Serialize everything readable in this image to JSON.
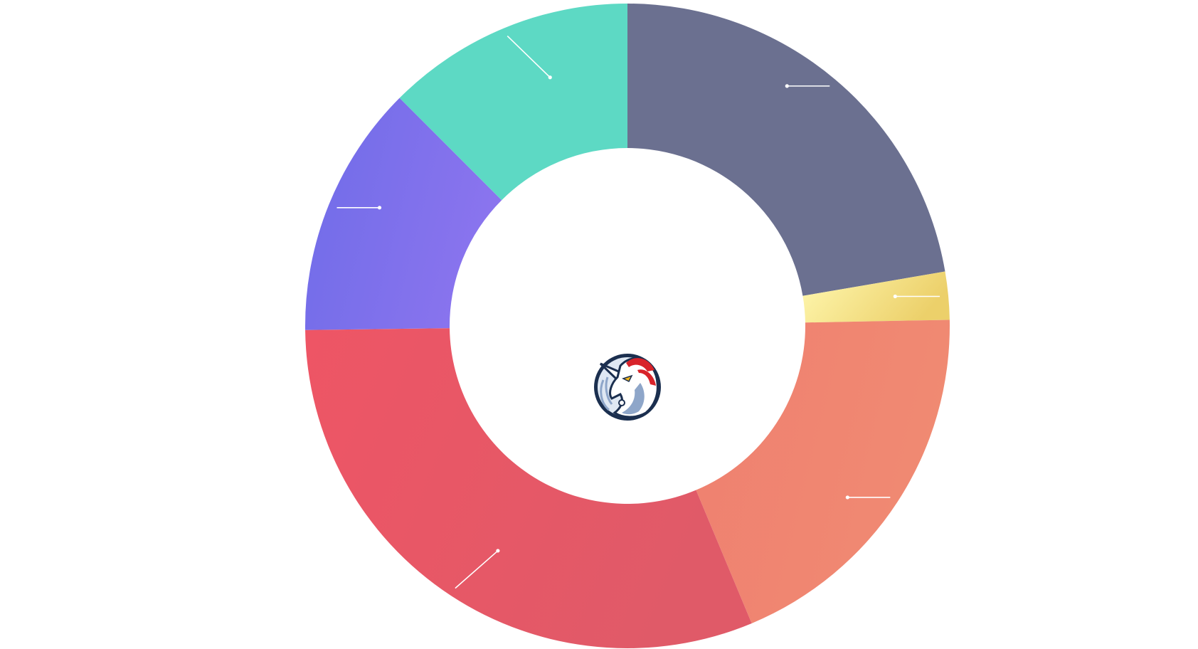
{
  "chart_data": {
    "type": "pie",
    "variant": "donut",
    "title": "",
    "legend": "none",
    "slices": [
      {
        "value": 22.3,
        "color": "#6b7090",
        "gradient": [
          "#6b7090",
          "#6b7090"
        ]
      },
      {
        "value": 2.4,
        "color": "#f0d76e",
        "gradient": [
          "#fff8b0",
          "#ecd06a"
        ]
      },
      {
        "value": 19.0,
        "color": "#f08a72",
        "gradient": [
          "#ef8070",
          "#f08a72"
        ]
      },
      {
        "value": 31.1,
        "color": "#e95565",
        "gradient": [
          "#ee5565",
          "#e05a68"
        ]
      },
      {
        "value": 12.7,
        "color": "#7b70ec",
        "gradient": [
          "#6f6ce8",
          "#8a74ee"
        ]
      },
      {
        "value": 12.5,
        "color": "#5dd9c4",
        "gradient": [
          "#5dd9c4",
          "#5dd9c4"
        ]
      }
    ],
    "center_logo": "1inch-unicorn-logo"
  }
}
